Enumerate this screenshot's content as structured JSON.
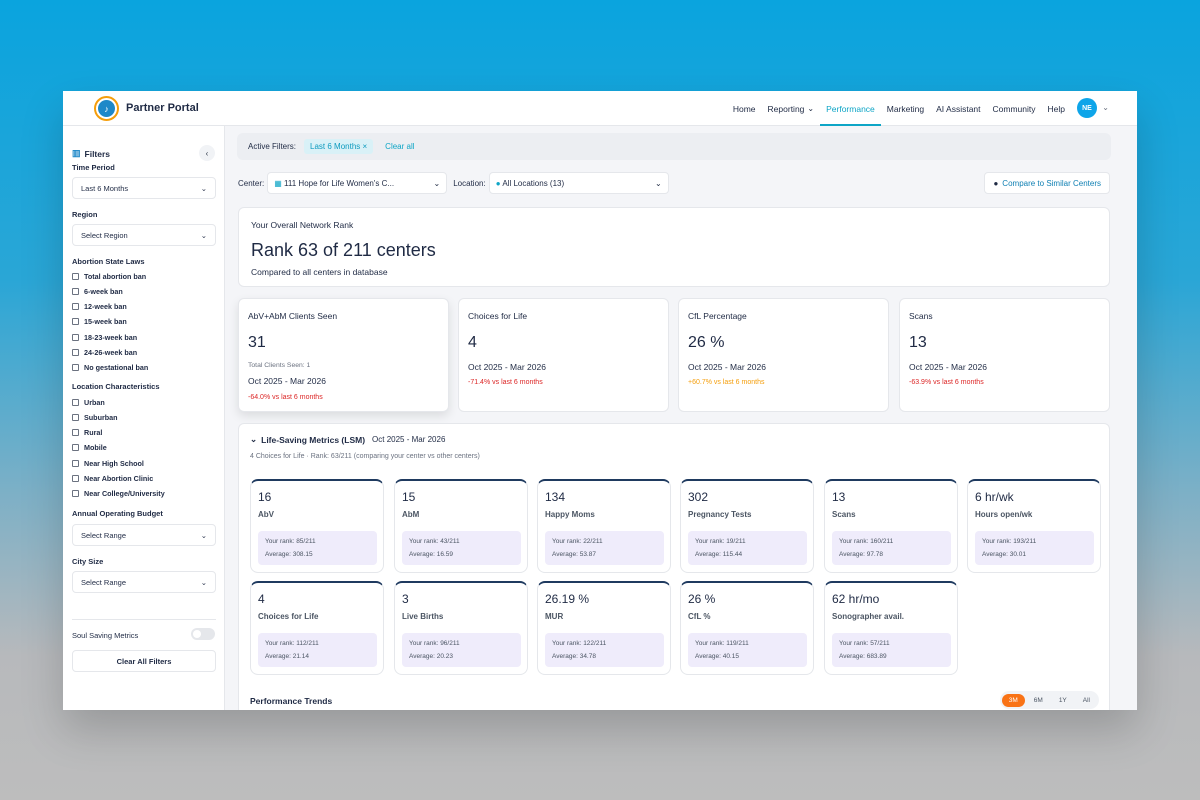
{
  "nav": {
    "brand": "Partner Portal",
    "logo_text": "♪",
    "links": [
      {
        "label": "Home",
        "active": false
      },
      {
        "label": "Reporting",
        "active": false,
        "dropdown": true
      },
      {
        "label": "Performance",
        "active": true
      },
      {
        "label": "Marketing",
        "active": false
      },
      {
        "label": "AI Assistant",
        "active": false
      },
      {
        "label": "Community",
        "active": false
      },
      {
        "label": "Help",
        "active": false
      }
    ],
    "avatar": "NE"
  },
  "sidebar": {
    "title": "Filters",
    "collapse_icon": "‹",
    "time_period": {
      "label": "Time Period",
      "value": "Last 6 Months"
    },
    "region": {
      "label": "Region",
      "value": "Select Region"
    },
    "abortion_laws": {
      "label": "Abortion State Laws",
      "items": [
        "Total abortion ban",
        "6-week ban",
        "12-week ban",
        "15-week ban",
        "18-23-week ban",
        "24-26-week ban",
        "No gestational ban"
      ]
    },
    "location": {
      "label": "Location Characteristics",
      "items": [
        "Urban",
        "Suburban",
        "Rural",
        "Mobile",
        "Near High School",
        "Near Abortion Clinic",
        "Near College/University"
      ]
    },
    "budget": {
      "label": "Annual Operating Budget",
      "value": "Select Range"
    },
    "city_size": {
      "label": "City Size",
      "value": "Select Range"
    },
    "soul_saving": {
      "label": "Soul Saving Metrics"
    },
    "clear_all": "Clear All Filters"
  },
  "filters": {
    "label": "Active Filters:",
    "chip": "Last 6 Months",
    "chip_close": "×",
    "clear_all": "Clear all"
  },
  "selectors": {
    "center_label": "Center:",
    "center_value": "111 Hope for Life Women's C...",
    "location_label": "Location:",
    "location_value": "All Locations (13)",
    "compare": "Compare to Similar Centers"
  },
  "rank": {
    "subtitle": "Your Overall Network Rank",
    "title": "Rank 63 of 211 centers",
    "note": "Compared to all centers in database"
  },
  "stats": [
    {
      "title": "AbV+AbM Clients Seen",
      "value": "31",
      "small": "Total Clients Seen: 1",
      "period": "Oct 2025 - Mar 2026",
      "delta": "-64.0% vs last 6 months",
      "delta_color": "red"
    },
    {
      "title": "Choices for Life",
      "value": "4",
      "period": "Oct 2025 - Mar 2026",
      "delta": "-71.4% vs last 6 months",
      "delta_color": "red"
    },
    {
      "title": "CfL Percentage",
      "value": "26 %",
      "period": "Oct 2025 - Mar 2026",
      "delta": "+60.7% vs last 6 months",
      "delta_color": "orange"
    },
    {
      "title": "Scans",
      "value": "13",
      "period": "Oct 2025 - Mar 2026",
      "delta": "-63.9% vs last 6 months",
      "delta_color": "red"
    }
  ],
  "lsm": {
    "title": "Life-Saving Metrics (LSM)",
    "period": "Oct 2025 - Mar 2026",
    "subtitle": "4 Choices for Life · Rank: 63/211 (comparing your center vs other centers)",
    "metrics": [
      {
        "value": "16",
        "name": "AbV",
        "rank": "Your rank: 85/211",
        "avg": "Average: 308.15"
      },
      {
        "value": "15",
        "name": "AbM",
        "rank": "Your rank: 43/211",
        "avg": "Average: 16.59"
      },
      {
        "value": "134",
        "name": "Happy Moms",
        "rank": "Your rank: 22/211",
        "avg": "Average: 53.87"
      },
      {
        "value": "302",
        "name": "Pregnancy Tests",
        "rank": "Your rank: 19/211",
        "avg": "Average: 115.44"
      },
      {
        "value": "13",
        "name": "Scans",
        "rank": "Your rank: 160/211",
        "avg": "Average: 97.78"
      },
      {
        "value": "6 hr/wk",
        "name": "Hours open/wk",
        "rank": "Your rank: 193/211",
        "avg": "Average: 30.01"
      },
      {
        "value": "4",
        "name": "Choices for Life",
        "rank": "Your rank: 112/211",
        "avg": "Average: 21.14"
      },
      {
        "value": "3",
        "name": "Live Births",
        "rank": "Your rank: 96/211",
        "avg": "Average: 20.23"
      },
      {
        "value": "26.19 %",
        "name": "MUR",
        "rank": "Your rank: 122/211",
        "avg": "Average: 34.78"
      },
      {
        "value": "26 %",
        "name": "CfL %",
        "rank": "Your rank: 119/211",
        "avg": "Average: 40.15"
      },
      {
        "value": "62 hr/mo",
        "name": "Sonographer avail.",
        "rank": "Your rank: 57/211",
        "avg": "Average: 683.89"
      }
    ],
    "trends_title": "Performance Trends",
    "ranges": [
      "3M",
      "6M",
      "1Y",
      "All"
    ]
  }
}
